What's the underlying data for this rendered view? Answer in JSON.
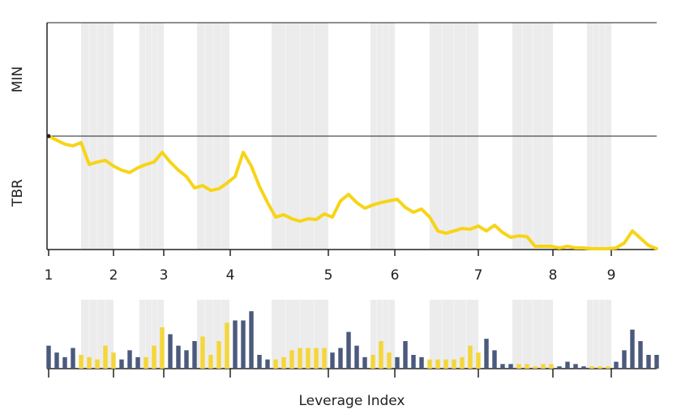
{
  "chart_data": {
    "type": "line",
    "row_labels": [
      "MIN",
      "TBR"
    ],
    "x_label": "Leverage Index",
    "xlim": [
      0,
      75
    ],
    "ylim": [
      0,
      100
    ],
    "xticks": [
      {
        "value": 0,
        "label": "1"
      },
      {
        "value": 8,
        "label": "2"
      },
      {
        "value": 14.2,
        "label": "3"
      },
      {
        "value": 22.4,
        "label": "4"
      },
      {
        "value": 34.5,
        "label": "5"
      },
      {
        "value": 42.7,
        "label": "6"
      },
      {
        "value": 53,
        "label": "7"
      },
      {
        "value": 62.2,
        "label": "8"
      },
      {
        "value": 69.4,
        "label": "9"
      }
    ],
    "bands": [
      [
        4,
        8
      ],
      [
        11.2,
        14.2
      ],
      [
        18.3,
        22.3
      ],
      [
        27.5,
        34.5
      ],
      [
        39.7,
        42.7
      ],
      [
        47,
        53
      ],
      [
        57.2,
        62.2
      ],
      [
        66.4,
        69.4
      ]
    ],
    "band_color": "#ececec",
    "series": [
      {
        "color": "#f7d417",
        "values": [
          100,
          96.4,
          92.9,
          91.4,
          94.3,
          75,
          77.1,
          78.6,
          73.6,
          70,
          67.9,
          72.1,
          75,
          77.1,
          85.7,
          77.1,
          70,
          64.3,
          54.3,
          56.4,
          52.1,
          53.6,
          58.6,
          64.3,
          85.7,
          73.6,
          55.7,
          41.4,
          28.6,
          30.7,
          27.1,
          25,
          27.1,
          26.4,
          31.4,
          28.6,
          42.9,
          48.6,
          41.4,
          36.4,
          39.3,
          41.4,
          42.9,
          44.3,
          37.1,
          32.9,
          35.7,
          28.6,
          16.4,
          14.3,
          16.4,
          18.6,
          17.9,
          20.7,
          16.4,
          21.4,
          15,
          10.7,
          12.1,
          11.4,
          2.9,
          2.9,
          2.9,
          1.4,
          2.9,
          1.4,
          1.4,
          0.7,
          0.7,
          0.7,
          1.4,
          5.7,
          16.4,
          10,
          3.6,
          0.7
        ]
      }
    ],
    "bar_ylim": [
      0,
      30
    ],
    "bar_color": "#4b5a7c",
    "bar_highlight_color": "#f5d63a",
    "bar_values": [
      10,
      7,
      5,
      9,
      6,
      5,
      4,
      10,
      7,
      4,
      8,
      5,
      5,
      10,
      18,
      15,
      10,
      8,
      12,
      14,
      6,
      12,
      20,
      21,
      21,
      25,
      6,
      4,
      4,
      5,
      8,
      9,
      9,
      9,
      9,
      7,
      9,
      16,
      10,
      5,
      6,
      12,
      7,
      5,
      12,
      6,
      5,
      4,
      4,
      4,
      4,
      5,
      10,
      7,
      13,
      8,
      2,
      2,
      2,
      2,
      1,
      2,
      2,
      1,
      3,
      2,
      1,
      1,
      1,
      1,
      3,
      8,
      17,
      12,
      6,
      6
    ]
  }
}
